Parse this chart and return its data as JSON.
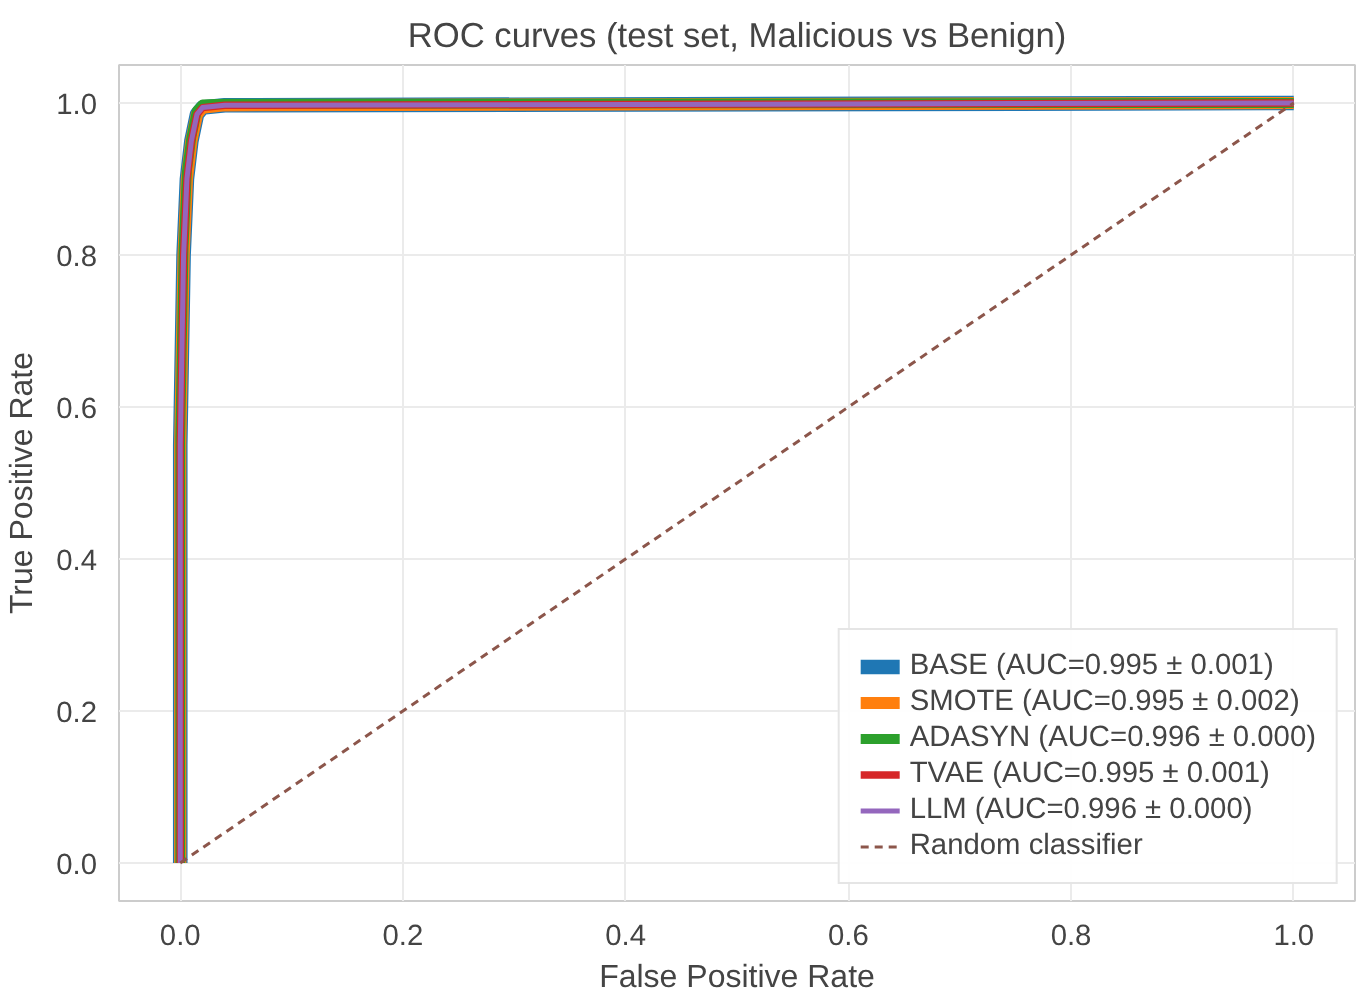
{
  "chart_data": {
    "type": "line",
    "title": "ROC curves (test set, Malicious vs Benign)",
    "xlabel": "False Positive Rate",
    "ylabel": "True Positive Rate",
    "xlim": [
      -0.055,
      1.055
    ],
    "ylim": [
      -0.05,
      1.05
    ],
    "xticks": [
      {
        "value": 0,
        "label": "0.0"
      },
      0.2,
      0.4,
      0.6,
      0.8,
      {
        "value": 1,
        "label": "1.0"
      }
    ],
    "yticks": [
      {
        "value": 0,
        "label": "0.0"
      },
      0.2,
      0.4,
      0.6,
      0.8,
      {
        "value": 1,
        "label": "1.0"
      }
    ],
    "grid": true,
    "legend": "bottom right",
    "marker": "none",
    "line_style": "solid",
    "series": [
      {
        "name": "BASE (AUC=0.995 ± 0.001)",
        "color": "#1f77b4",
        "x": [
          0,
          0,
          0.003,
          0.006,
          0.01,
          0.015,
          0.02,
          0.04,
          1
        ],
        "values": [
          0,
          0.55,
          0.8,
          0.9,
          0.95,
          0.985,
          0.994,
          0.997,
          1
        ]
      },
      {
        "name": "SMOTE (AUC=0.995 ± 0.002)",
        "color": "#ff7f0e",
        "x": [
          0,
          0,
          0.003,
          0.006,
          0.01,
          0.015,
          0.02,
          0.04,
          1
        ],
        "values": [
          0,
          0.55,
          0.8,
          0.9,
          0.95,
          0.985,
          0.994,
          0.997,
          1
        ]
      },
      {
        "name": "ADASYN (AUC=0.996 ± 0.000)",
        "color": "#2ca02c",
        "x": [
          0,
          0,
          0.003,
          0.006,
          0.01,
          0.015,
          0.02,
          0.04,
          1
        ],
        "values": [
          0,
          0.56,
          0.81,
          0.91,
          0.955,
          0.99,
          0.998,
          0.999,
          1
        ]
      },
      {
        "name": "TVAE (AUC=0.995 ± 0.001)",
        "color": "#d62728",
        "x": [
          0,
          0,
          0.003,
          0.006,
          0.01,
          0.015,
          0.02,
          0.04,
          1
        ],
        "values": [
          0,
          0.55,
          0.8,
          0.9,
          0.95,
          0.985,
          0.994,
          0.997,
          1
        ]
      },
      {
        "name": "LLM (AUC=0.996 ± 0.000)",
        "color": "#9467bd",
        "x": [
          0,
          0,
          0.003,
          0.006,
          0.01,
          0.015,
          0.02,
          0.04,
          1
        ],
        "values": [
          0,
          0.55,
          0.8,
          0.9,
          0.95,
          0.985,
          0.994,
          0.997,
          1
        ]
      },
      {
        "name": "Random classifier",
        "color": "#8c564b",
        "line_style": "dashed",
        "x": [
          0,
          1
        ],
        "values": [
          0,
          1
        ]
      }
    ]
  }
}
